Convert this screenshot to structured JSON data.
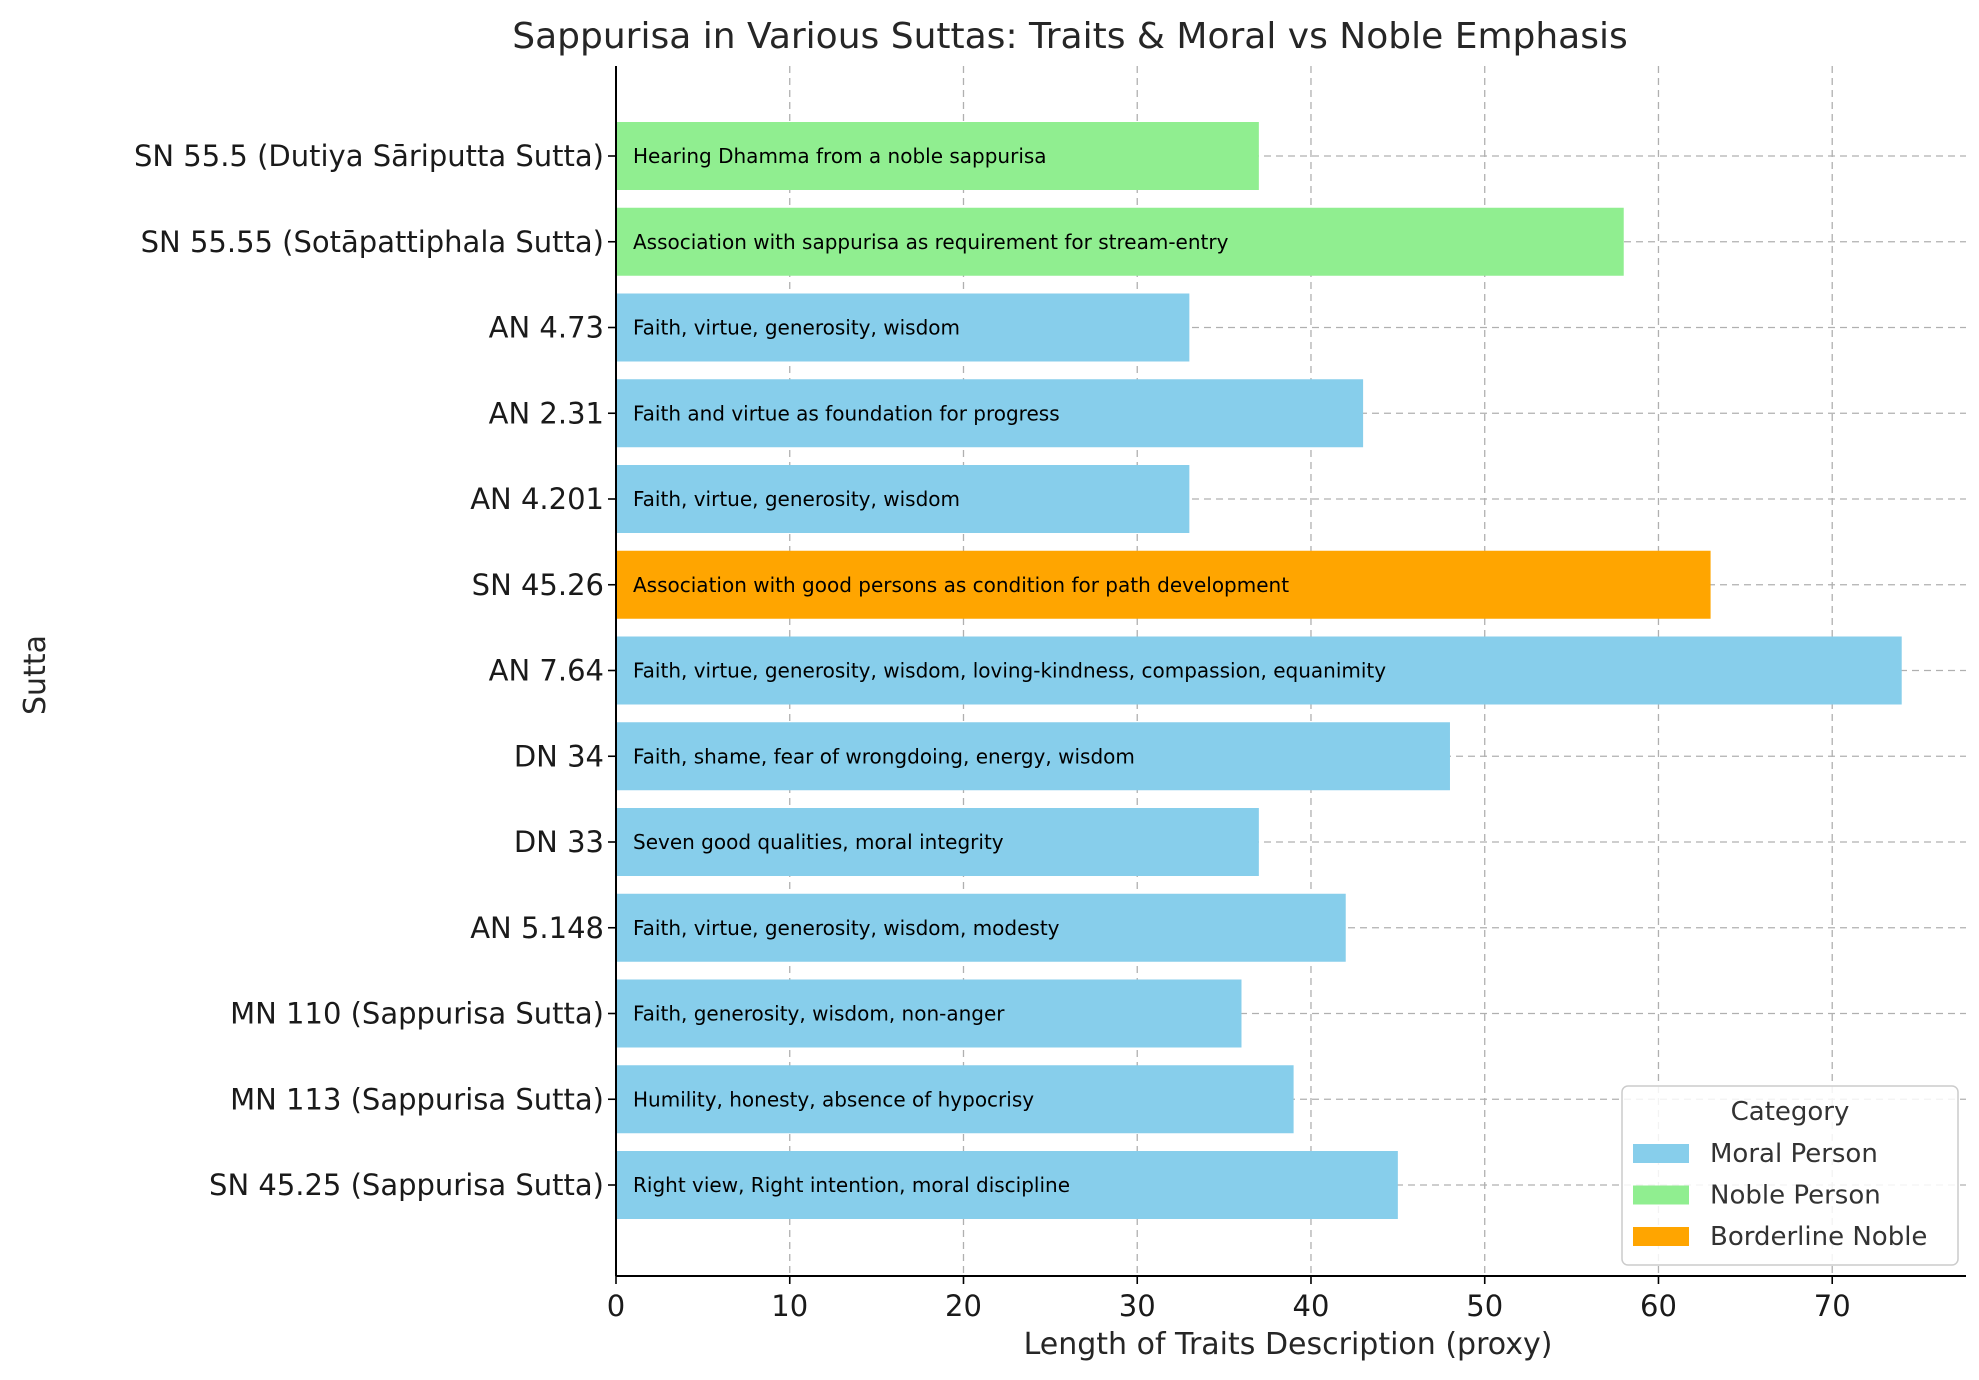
{
  "chart_data": {
    "type": "bar",
    "orientation": "horizontal",
    "title": "Sappurisa in Various Suttas: Traits & Moral vs Noble Emphasis",
    "xlabel": "Length of Traits Description (proxy)",
    "ylabel": "Sutta",
    "xlim": [
      0,
      77.7
    ],
    "xticks": [
      0,
      10,
      20,
      30,
      40,
      50,
      60,
      70
    ],
    "grid": true,
    "legend": {
      "title": "Category",
      "placement": "lower-right",
      "entries": [
        {
          "name": "Moral Person",
          "color": "#87ceeb"
        },
        {
          "name": "Noble Person",
          "color": "#90ee90"
        },
        {
          "name": "Borderline Noble",
          "color": "#ffa500"
        }
      ]
    },
    "bars": [
      {
        "sutta": "SN 55.5 (Dutiya Sāriputta Sutta)",
        "value": 37,
        "category": "Noble Person",
        "traits": "Hearing Dhamma from a noble sappurisa"
      },
      {
        "sutta": "SN 55.55 (Sotāpattiphala Sutta)",
        "value": 58,
        "category": "Noble Person",
        "traits": "Association with sappurisa as requirement for stream-entry"
      },
      {
        "sutta": "AN 4.73",
        "value": 33,
        "category": "Moral Person",
        "traits": "Faith, virtue, generosity, wisdom"
      },
      {
        "sutta": "AN 2.31",
        "value": 43,
        "category": "Moral Person",
        "traits": "Faith and virtue as foundation for progress"
      },
      {
        "sutta": "AN 4.201",
        "value": 33,
        "category": "Moral Person",
        "traits": "Faith, virtue, generosity, wisdom"
      },
      {
        "sutta": "SN 45.26",
        "value": 63,
        "category": "Borderline Noble",
        "traits": "Association with good persons as condition for path development"
      },
      {
        "sutta": "AN 7.64",
        "value": 74,
        "category": "Moral Person",
        "traits": "Faith, virtue, generosity, wisdom, loving-kindness, compassion, equanimity"
      },
      {
        "sutta": "DN 34",
        "value": 48,
        "category": "Moral Person",
        "traits": "Faith, shame, fear of wrongdoing, energy, wisdom"
      },
      {
        "sutta": "DN 33",
        "value": 37,
        "category": "Moral Person",
        "traits": "Seven good qualities, moral integrity"
      },
      {
        "sutta": "AN 5.148",
        "value": 42,
        "category": "Moral Person",
        "traits": "Faith, virtue, generosity, wisdom, modesty"
      },
      {
        "sutta": "MN 110 (Sappurisa Sutta)",
        "value": 36,
        "category": "Moral Person",
        "traits": "Faith, generosity, wisdom, non-anger"
      },
      {
        "sutta": "MN 113 (Sappurisa Sutta)",
        "value": 39,
        "category": "Moral Person",
        "traits": "Humility, honesty, absence of hypocrisy"
      },
      {
        "sutta": "SN 45.25 (Sappurisa Sutta)",
        "value": 45,
        "category": "Moral Person",
        "traits": "Right view, Right intention, moral discipline"
      }
    ]
  }
}
